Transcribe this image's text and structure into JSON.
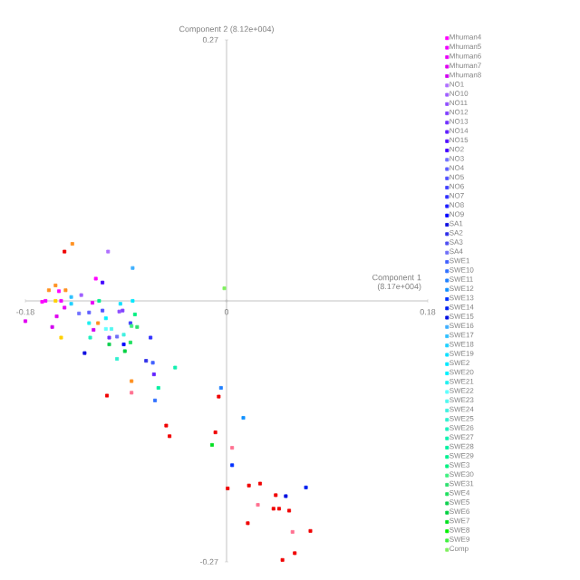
{
  "chart_data": {
    "type": "scatter",
    "xlabel": "Component 1 (8.17e+004)",
    "ylabel": "Component 2 (8.12e+004)",
    "xlim": [
      -0.18,
      0.18
    ],
    "ylim": [
      -0.27,
      0.27
    ],
    "xticks": [
      -0.18,
      0,
      0.18
    ],
    "yticks": [
      -0.27,
      {
        "value": 0,
        "label": null
      },
      0.27
    ],
    "marker": "square",
    "legend": "right",
    "grid": false,
    "series": [
      {
        "name": "Mhuman4",
        "color": "#ff00ff",
        "x": [
          -0.117,
          -0.15,
          -0.165
        ],
        "values": [
          0.023,
          0.01,
          -0.001
        ]
      },
      {
        "name": "Mhuman5",
        "color": "#f000ff",
        "x": [
          -0.162,
          -0.148
        ],
        "values": [
          0.0,
          0.0
        ]
      },
      {
        "name": "Mhuman6",
        "color": "#e800f8",
        "x": [
          -0.145,
          -0.12
        ],
        "values": [
          -0.007,
          -0.002
        ]
      },
      {
        "name": "Mhuman7",
        "color": "#e000f0",
        "x": [
          -0.18,
          -0.152
        ],
        "values": [
          -0.021,
          -0.016
        ]
      },
      {
        "name": "Mhuman8",
        "color": "#d000f0",
        "x": [
          -0.156,
          -0.119
        ],
        "values": [
          -0.027,
          -0.03
        ]
      },
      {
        "name": "NO1",
        "color": "#b070ff",
        "x": [
          -0.106
        ],
        "values": [
          0.051
        ]
      },
      {
        "name": "NO10",
        "color": "#a060ff",
        "x": [
          -0.13
        ],
        "values": [
          0.006
        ]
      },
      {
        "name": "NO11",
        "color": "#9050ff",
        "x": [
          -0.096
        ],
        "values": [
          -0.011
        ]
      },
      {
        "name": "NO12",
        "color": "#8040ff",
        "x": [
          -0.093
        ],
        "values": [
          -0.01
        ]
      },
      {
        "name": "NO13",
        "color": "#7030ff",
        "x": [
          -0.105
        ],
        "values": [
          -0.038
        ]
      },
      {
        "name": "NO14",
        "color": "#6020ff",
        "x": [
          -0.065
        ],
        "values": [
          -0.076
        ]
      },
      {
        "name": "NO15",
        "color": "#5010ff"
      },
      {
        "name": "NO2",
        "color": "#4000ff",
        "x": [
          -0.111
        ],
        "values": [
          0.019
        ]
      },
      {
        "name": "NO3",
        "color": "#7070ff",
        "x": [
          -0.132
        ],
        "values": [
          -0.013
        ]
      },
      {
        "name": "NO4",
        "color": "#6060ff",
        "x": [
          -0.123
        ],
        "values": [
          -0.012
        ]
      },
      {
        "name": "NO5",
        "color": "#5050ff",
        "x": [
          -0.111
        ],
        "values": [
          -0.01
        ]
      },
      {
        "name": "NO6",
        "color": "#4040ff",
        "x": [
          -0.086
        ],
        "values": [
          -0.023
        ]
      },
      {
        "name": "NO7",
        "color": "#3030ff",
        "x": [
          -0.068
        ],
        "values": [
          -0.038
        ]
      },
      {
        "name": "NO8",
        "color": "#2020ff"
      },
      {
        "name": "NO9",
        "color": "#0000ff",
        "x": [
          -0.092
        ],
        "values": [
          -0.045
        ]
      },
      {
        "name": "SA1",
        "color": "#1010e0",
        "x": [
          -0.127
        ],
        "values": [
          -0.054
        ]
      },
      {
        "name": "SA2",
        "color": "#3030e8",
        "x": [
          -0.072
        ],
        "values": [
          -0.062
        ]
      },
      {
        "name": "SA3",
        "color": "#5050f0"
      },
      {
        "name": "SA4",
        "color": "#7070f8",
        "x": [
          -0.098
        ],
        "values": [
          -0.037
        ]
      },
      {
        "name": "SWE1",
        "color": "#4060ff",
        "x": [
          -0.066
        ],
        "values": [
          -0.064
        ]
      },
      {
        "name": "SWE10",
        "color": "#3070ff",
        "x": [
          -0.064
        ],
        "values": [
          -0.103
        ]
      },
      {
        "name": "SWE11",
        "color": "#2080ff",
        "x": [
          -0.005
        ],
        "values": [
          -0.09
        ]
      },
      {
        "name": "SWE12",
        "color": "#1090ff",
        "x": [
          0.015
        ],
        "values": [
          -0.121
        ]
      },
      {
        "name": "SWE13",
        "color": "#0030ff",
        "x": [
          0.005
        ],
        "values": [
          -0.17
        ]
      },
      {
        "name": "SWE14",
        "color": "#0020f0",
        "x": [
          0.071
        ],
        "values": [
          -0.193
        ]
      },
      {
        "name": "SWE15",
        "color": "#0010e0",
        "x": [
          0.053
        ],
        "values": [
          -0.202
        ]
      },
      {
        "name": "SWE16",
        "color": "#40b0ff",
        "x": [
          -0.084
        ],
        "values": [
          0.034
        ]
      },
      {
        "name": "SWE17",
        "color": "#30c0ff",
        "x": [
          -0.139
        ],
        "values": [
          0.004
        ]
      },
      {
        "name": "SWE18",
        "color": "#20d0ff",
        "x": [
          -0.139
        ],
        "values": [
          -0.003
        ]
      },
      {
        "name": "SWE19",
        "color": "#10e0ff",
        "x": [
          -0.095
        ],
        "values": [
          -0.003
        ]
      },
      {
        "name": "SWE2",
        "color": "#00e8ff",
        "x": [
          -0.084
        ],
        "values": [
          0.0
        ]
      },
      {
        "name": "SWE20",
        "color": "#00f0ff",
        "x": [
          -0.108
        ],
        "values": [
          -0.018
        ]
      },
      {
        "name": "SWE21",
        "color": "#20f0f0",
        "x": [
          -0.123
        ],
        "values": [
          -0.023
        ]
      },
      {
        "name": "SWE22",
        "color": "#60ffff",
        "x": [
          -0.108
        ],
        "values": [
          -0.029
        ]
      },
      {
        "name": "SWE23",
        "color": "#50f8f0",
        "x": [
          -0.103
        ],
        "values": [
          -0.029
        ]
      },
      {
        "name": "SWE24",
        "color": "#40f0e0",
        "x": [
          -0.092
        ],
        "values": [
          -0.035
        ]
      },
      {
        "name": "SWE25",
        "color": "#30f0d0",
        "x": [
          -0.098
        ],
        "values": [
          -0.06
        ]
      },
      {
        "name": "SWE26",
        "color": "#20f0c0",
        "x": [
          -0.122
        ],
        "values": [
          -0.038
        ]
      },
      {
        "name": "SWE27",
        "color": "#10f0b0",
        "x": [
          -0.046
        ],
        "values": [
          -0.069
        ]
      },
      {
        "name": "SWE28",
        "color": "#00f0a0",
        "x": [
          -0.061
        ],
        "values": [
          -0.09
        ]
      },
      {
        "name": "SWE29",
        "color": "#00f090",
        "x": [
          -0.114
        ],
        "values": [
          0.0
        ]
      },
      {
        "name": "SWE3",
        "color": "#00f080",
        "x": [
          -0.082
        ],
        "values": [
          -0.014
        ]
      },
      {
        "name": "SWE30",
        "color": "#40f080",
        "x": [
          -0.085
        ],
        "values": [
          -0.026
        ]
      },
      {
        "name": "SWE31",
        "color": "#30e070",
        "x": [
          -0.08
        ],
        "values": [
          -0.027
        ]
      },
      {
        "name": "SWE4",
        "color": "#20e060",
        "x": [
          -0.086
        ],
        "values": [
          -0.043
        ]
      },
      {
        "name": "SWE5",
        "color": "#10d050",
        "x": [
          -0.105
        ],
        "values": [
          -0.045
        ]
      },
      {
        "name": "SWE6",
        "color": "#00d040",
        "x": [
          -0.091
        ],
        "values": [
          -0.052
        ]
      },
      {
        "name": "SWE7",
        "color": "#00e020",
        "x": [
          -0.013
        ],
        "values": [
          -0.149
        ]
      },
      {
        "name": "SWE8",
        "color": "#00f000"
      },
      {
        "name": "SWE9",
        "color": "#40f040"
      },
      {
        "name": "Comp",
        "color": "#80f060",
        "x": [
          -0.002
        ],
        "values": [
          0.013
        ]
      },
      {
        "color": "#ff9020",
        "x": [
          -0.138,
          -0.153,
          -0.159,
          -0.144,
          -0.115,
          -0.085
        ],
        "values": [
          0.059,
          0.016,
          0.011,
          0.011,
          -0.023,
          -0.083
        ]
      },
      {
        "color": "#ffd000",
        "x": [
          -0.153,
          -0.148
        ],
        "values": [
          0.0,
          -0.038
        ]
      },
      {
        "color": "#f00000",
        "x": [
          -0.145,
          -0.107,
          -0.007,
          -0.054,
          -0.051,
          -0.01,
          0.001,
          0.02,
          0.03,
          0.044,
          0.042,
          0.047,
          0.056,
          0.019,
          0.075,
          0.061,
          0.05
        ],
        "values": [
          0.051,
          -0.098,
          -0.099,
          -0.129,
          -0.14,
          -0.136,
          -0.194,
          -0.191,
          -0.189,
          -0.201,
          -0.215,
          -0.215,
          -0.217,
          -0.23,
          -0.238,
          -0.261,
          -0.268
        ]
      },
      {
        "color": "#ff7090",
        "x": [
          -0.085,
          0.005,
          0.028,
          0.059
        ],
        "values": [
          -0.095,
          -0.152,
          -0.211,
          -0.239
        ]
      }
    ]
  }
}
